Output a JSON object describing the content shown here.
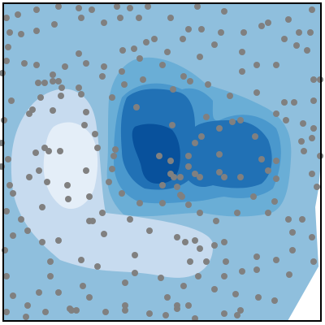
{
  "chart_data": {
    "type": "contour",
    "title": "",
    "xlabel": "",
    "ylabel": "",
    "axes_visible": false,
    "grid": false,
    "legend": "none",
    "colormap": "Blues",
    "levels": [
      {
        "level": 1,
        "color": "#e4eef8"
      },
      {
        "level": 2,
        "color": "#c7dbef"
      },
      {
        "level": 3,
        "color": "#9ecae1"
      },
      {
        "level": 4,
        "color": "#6aaed6"
      },
      {
        "level": 5,
        "color": "#4a98cd"
      },
      {
        "level": 6,
        "color": "#2171b5"
      },
      {
        "level": 7,
        "color": "#08519c"
      }
    ],
    "background_color": "#ffffff",
    "outer_fill_color": "#8fbfdd",
    "point_color": "#808080",
    "points": [
      [
        8,
        22
      ],
      [
        22,
        18
      ],
      [
        45,
        12
      ],
      [
        72,
        8
      ],
      [
        97,
        10
      ],
      [
        113,
        12
      ],
      [
        144,
        8
      ],
      [
        160,
        10
      ],
      [
        182,
        8
      ],
      [
        210,
        22
      ],
      [
        243,
        8
      ],
      [
        276,
        14
      ],
      [
        330,
        28
      ],
      [
        355,
        24
      ],
      [
        384,
        12
      ],
      [
        12,
        40
      ],
      [
        10,
        58
      ],
      [
        26,
        42
      ],
      [
        45,
        38
      ],
      [
        67,
        30
      ],
      [
        100,
        22
      ],
      [
        128,
        28
      ],
      [
        148,
        22
      ],
      [
        171,
        22
      ],
      [
        190,
        48
      ],
      [
        232,
        36
      ],
      [
        248,
        36
      ],
      [
        272,
        40
      ],
      [
        300,
        40
      ],
      [
        322,
        32
      ],
      [
        350,
        48
      ],
      [
        368,
        40
      ],
      [
        382,
        40
      ],
      [
        8,
        75
      ],
      [
        30,
        78
      ],
      [
        45,
        80
      ],
      [
        65,
        92
      ],
      [
        80,
        82
      ],
      [
        97,
        66
      ],
      [
        106,
        78
      ],
      [
        128,
        82
      ],
      [
        151,
        62
      ],
      [
        165,
        60
      ],
      [
        180,
        52
      ],
      [
        206,
        64
      ],
      [
        225,
        48
      ],
      [
        246,
        70
      ],
      [
        264,
        55
      ],
      [
        298,
        64
      ],
      [
        365,
        56
      ],
      [
        378,
        62
      ],
      [
        3,
        90
      ],
      [
        47,
        102
      ],
      [
        55,
        102
      ],
      [
        65,
        100
      ],
      [
        72,
        100
      ],
      [
        76,
        108
      ],
      [
        97,
        108
      ],
      [
        126,
        94
      ],
      [
        150,
        88
      ],
      [
        172,
        72
      ],
      [
        200,
        80
      ],
      [
        226,
        94
      ],
      [
        298,
        88
      ],
      [
        316,
        80
      ],
      [
        340,
        80
      ],
      [
        386,
        98
      ],
      [
        394,
        98
      ],
      [
        14,
        124
      ],
      [
        40,
        135
      ],
      [
        50,
        120
      ],
      [
        75,
        118
      ],
      [
        100,
        116
      ],
      [
        138,
        120
      ],
      [
        153,
        104
      ],
      [
        176,
        98
      ],
      [
        213,
        110
      ],
      [
        234,
        100
      ],
      [
        256,
        104
      ],
      [
        283,
        118
      ],
      [
        316,
        114
      ],
      [
        350,
        126
      ],
      [
        362,
        126
      ],
      [
        386,
        124
      ],
      [
        5,
        148
      ],
      [
        36,
        140
      ],
      [
        65,
        136
      ],
      [
        104,
        154
      ],
      [
        106,
        138
      ],
      [
        117,
        165
      ],
      [
        168,
        132
      ],
      [
        212,
        154
      ],
      [
        254,
        144
      ],
      [
        286,
        150
      ],
      [
        296,
        148
      ],
      [
        340,
        140
      ],
      [
        373,
        152
      ],
      [
        386,
        158
      ],
      [
        2,
        176
      ],
      [
        10,
        196
      ],
      [
        44,
        188
      ],
      [
        55,
        182
      ],
      [
        60,
        186
      ],
      [
        74,
        186
      ],
      [
        120,
        182
      ],
      [
        142,
        184
      ],
      [
        140,
        192
      ],
      [
        196,
        192
      ],
      [
        240,
        176
      ],
      [
        248,
        168
      ],
      [
        270,
        158
      ],
      [
        314,
        168
      ],
      [
        352,
        148
      ],
      [
        371,
        174
      ],
      [
        384,
        170
      ],
      [
        2,
        205
      ],
      [
        48,
        210
      ],
      [
        106,
        210
      ],
      [
        138,
        208
      ],
      [
        210,
        198
      ],
      [
        232,
        192
      ],
      [
        232,
        205
      ],
      [
        270,
        190
      ],
      [
        322,
        196
      ],
      [
        340,
        198
      ],
      [
        374,
        186
      ],
      [
        394,
        192
      ],
      [
        12,
        228
      ],
      [
        16,
        238
      ],
      [
        36,
        218
      ],
      [
        58,
        224
      ],
      [
        83,
        228
      ],
      [
        134,
        224
      ],
      [
        150,
        238
      ],
      [
        172,
        250
      ],
      [
        200,
        228
      ],
      [
        210,
        214
      ],
      [
        214,
        218
      ],
      [
        222,
        218
      ],
      [
        218,
        230
      ],
      [
        224,
        242
      ],
      [
        240,
        214
      ],
      [
        246,
        218
      ],
      [
        270,
        212
      ],
      [
        276,
        218
      ],
      [
        296,
        218
      ],
      [
        330,
        210
      ],
      [
        340,
        220
      ],
      [
        384,
        214
      ],
      [
        390,
        230
      ],
      [
        8,
        260
      ],
      [
        26,
        270
      ],
      [
        52,
        255
      ],
      [
        84,
        245
      ],
      [
        110,
        242
      ],
      [
        126,
        262
      ],
      [
        110,
        272
      ],
      [
        114,
        272
      ],
      [
        160,
        270
      ],
      [
        200,
        250
      ],
      [
        222,
        240
      ],
      [
        232,
        252
      ],
      [
        246,
        262
      ],
      [
        266,
        272
      ],
      [
        292,
        262
      ],
      [
        312,
        242
      ],
      [
        330,
        262
      ],
      [
        338,
        248
      ],
      [
        355,
        270
      ],
      [
        372,
        270
      ],
      [
        16,
        290
      ],
      [
        34,
        284
      ],
      [
        72,
        296
      ],
      [
        128,
        288
      ],
      [
        184,
        284
      ],
      [
        218,
        292
      ],
      [
        228,
        298
      ],
      [
        240,
        296
      ],
      [
        246,
        306
      ],
      [
        264,
        302
      ],
      [
        276,
        298
      ],
      [
        360,
        286
      ],
      [
        384,
        292
      ],
      [
        6,
        308
      ],
      [
        52,
        298
      ],
      [
        62,
        322
      ],
      [
        100,
        320
      ],
      [
        120,
        328
      ],
      [
        166,
        314
      ],
      [
        234,
        322
      ],
      [
        254,
        322
      ],
      [
        278,
        322
      ],
      [
        316,
        316
      ],
      [
        340,
        320
      ],
      [
        360,
        308
      ],
      [
        386,
        322
      ],
      [
        8,
        340
      ],
      [
        62,
        340
      ],
      [
        102,
        352
      ],
      [
        154,
        348
      ],
      [
        166,
        336
      ],
      [
        198,
        342
      ],
      [
        226,
        352
      ],
      [
        244,
        340
      ],
      [
        264,
        356
      ],
      [
        276,
        340
      ],
      [
        298,
        334
      ],
      [
        316,
        332
      ],
      [
        356,
        338
      ],
      [
        16,
        364
      ],
      [
        34,
        376
      ],
      [
        48,
        360
      ],
      [
        72,
        360
      ],
      [
        88,
        382
      ],
      [
        110,
        366
      ],
      [
        154,
        376
      ],
      [
        206,
        366
      ],
      [
        218,
        376
      ],
      [
        232,
        376
      ],
      [
        290,
        362
      ],
      [
        296,
        382
      ],
      [
        318,
        366
      ],
      [
        338,
        370
      ],
      [
        8,
        384
      ],
      [
        32,
        390
      ],
      [
        56,
        384
      ],
      [
        86,
        380
      ],
      [
        94,
        382
      ],
      [
        130,
        384
      ],
      [
        154,
        382
      ],
      [
        184,
        386
      ],
      [
        204,
        388
      ],
      [
        218,
        380
      ],
      [
        240,
        392
      ],
      [
        276,
        386
      ],
      [
        292,
        388
      ]
    ]
  }
}
